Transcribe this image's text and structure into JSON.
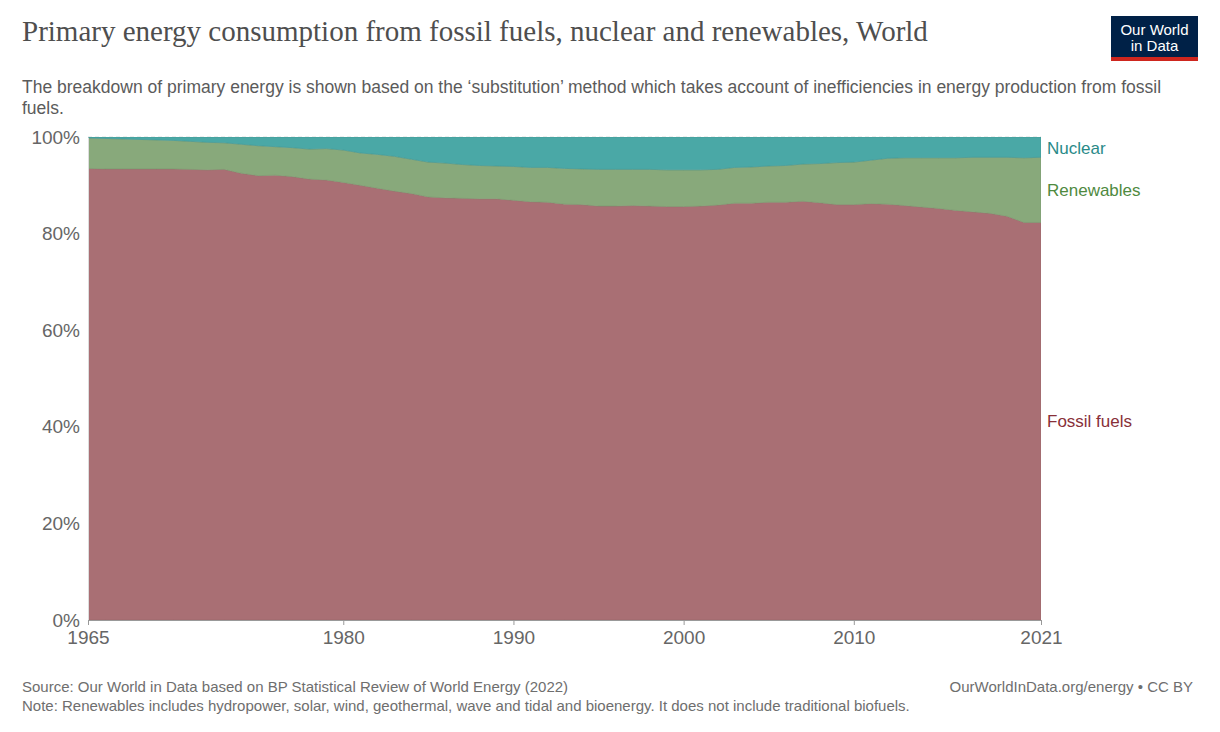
{
  "chart_data": {
    "type": "area",
    "stacked": true,
    "grid": true,
    "title": "Primary energy consumption from fossil fuels, nuclear and renewables, World",
    "subtitle": "The breakdown of primary energy is shown based on the ‘substitution’ method which takes account of inefficiencies in energy production from fossil fuels.",
    "source": "Source: Our World in Data based on BP Statistical Review of World Energy (2022)",
    "license": "OurWorldInData.org/energy • CC BY",
    "note": "Note: Renewables includes hydropower, solar, wind, geothermal, wave and tidal and bioenergy. It does not include traditional biofuels.",
    "logo": [
      "Our World",
      "in Data"
    ],
    "x": [
      1965,
      1966,
      1967,
      1968,
      1969,
      1970,
      1971,
      1972,
      1973,
      1974,
      1975,
      1976,
      1977,
      1978,
      1979,
      1980,
      1981,
      1982,
      1983,
      1984,
      1985,
      1986,
      1987,
      1988,
      1989,
      1990,
      1991,
      1992,
      1993,
      1994,
      1995,
      1996,
      1997,
      1998,
      1999,
      2000,
      2001,
      2002,
      2003,
      2004,
      2005,
      2006,
      2007,
      2008,
      2009,
      2010,
      2011,
      2012,
      2013,
      2014,
      2015,
      2016,
      2017,
      2018,
      2019,
      2020,
      2021
    ],
    "xlim": [
      1965,
      2021
    ],
    "xticks": [
      1965,
      1980,
      1990,
      2000,
      2010,
      2021
    ],
    "ylim": [
      0,
      100
    ],
    "yticks": [
      {
        "value": 0,
        "label": "0%"
      },
      {
        "value": 20,
        "label": "20%"
      },
      {
        "value": 40,
        "label": "40%"
      },
      {
        "value": 60,
        "label": "60%"
      },
      {
        "value": 80,
        "label": "80%"
      },
      {
        "value": 100,
        "label": "100%"
      }
    ],
    "series": [
      {
        "name": "Fossil fuels",
        "color": "#a96f74",
        "values": [
          93.5,
          93.4,
          93.4,
          93.4,
          93.4,
          93.4,
          93.3,
          93.2,
          93.3,
          92.5,
          92.0,
          92.1,
          91.8,
          91.3,
          91.1,
          90.6,
          90.0,
          89.4,
          88.8,
          88.3,
          87.6,
          87.4,
          87.3,
          87.2,
          87.2,
          86.9,
          86.6,
          86.5,
          86.1,
          86.0,
          85.7,
          85.7,
          85.8,
          85.7,
          85.6,
          85.6,
          85.7,
          85.9,
          86.3,
          86.3,
          86.5,
          86.5,
          86.7,
          86.4,
          86.0,
          86.0,
          86.2,
          86.1,
          85.8,
          85.5,
          85.2,
          84.8,
          84.5,
          84.2,
          83.6,
          82.3,
          82.3
        ]
      },
      {
        "name": "Renewables",
        "color": "#88a97b",
        "values": [
          6.3,
          6.3,
          6.2,
          6.1,
          6.0,
          5.9,
          5.8,
          5.7,
          5.5,
          6.0,
          6.2,
          5.9,
          6.0,
          6.2,
          6.5,
          6.7,
          6.7,
          7.0,
          7.2,
          7.1,
          7.2,
          7.2,
          7.0,
          6.9,
          6.8,
          7.0,
          7.1,
          7.2,
          7.4,
          7.4,
          7.6,
          7.6,
          7.5,
          7.6,
          7.6,
          7.6,
          7.5,
          7.4,
          7.4,
          7.5,
          7.5,
          7.6,
          7.7,
          8.1,
          8.7,
          8.8,
          9.0,
          9.5,
          9.9,
          10.2,
          10.5,
          10.9,
          11.3,
          11.6,
          12.2,
          13.4,
          13.5
        ]
      },
      {
        "name": "Nuclear",
        "color": "#4aa8a6",
        "values": [
          0.2,
          0.3,
          0.4,
          0.5,
          0.6,
          0.7,
          0.9,
          1.1,
          1.2,
          1.5,
          1.8,
          2.0,
          2.2,
          2.5,
          2.4,
          2.7,
          3.3,
          3.6,
          4.0,
          4.6,
          5.2,
          5.4,
          5.7,
          5.9,
          6.0,
          6.1,
          6.3,
          6.3,
          6.5,
          6.6,
          6.7,
          6.7,
          6.7,
          6.7,
          6.8,
          6.8,
          6.8,
          6.7,
          6.3,
          6.2,
          6.0,
          5.9,
          5.6,
          5.5,
          5.3,
          5.2,
          4.8,
          4.4,
          4.3,
          4.3,
          4.3,
          4.3,
          4.2,
          4.2,
          4.2,
          4.3,
          4.2
        ]
      }
    ]
  }
}
